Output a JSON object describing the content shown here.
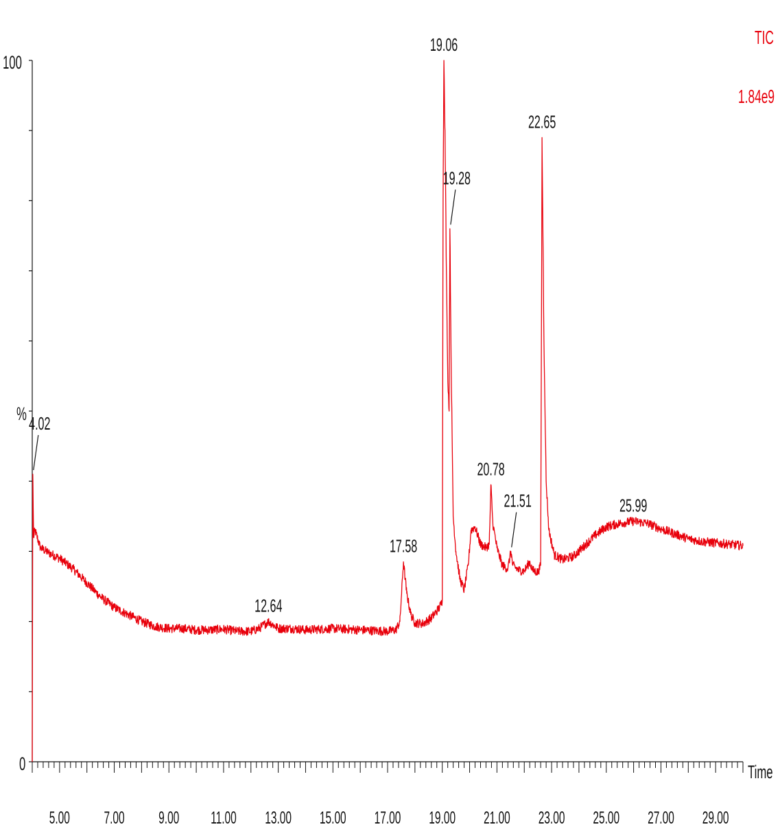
{
  "chart_data": {
    "type": "line",
    "trace_label": "TIC",
    "intensity_label": "1.84e9",
    "xlabel": "Time",
    "ylabel": "%",
    "xlim": [
      4.0,
      30.0
    ],
    "ylim": [
      0,
      100
    ],
    "y_tick_labels": {
      "top": "100",
      "bottom": "0"
    },
    "x_tick_values": [
      5,
      7,
      9,
      11,
      13,
      15,
      17,
      19,
      21,
      23,
      25,
      27,
      29
    ],
    "x_tick_labels": [
      "5.00",
      "7.00",
      "9.00",
      "11.00",
      "13.00",
      "15.00",
      "17.00",
      "19.00",
      "21.00",
      "23.00",
      "25.00",
      "27.00",
      "29.00"
    ],
    "series": [
      {
        "color": "#e8000b",
        "points": [
          [
            4.0,
            0
          ],
          [
            4.02,
            41
          ],
          [
            4.05,
            32
          ],
          [
            4.1,
            33
          ],
          [
            4.3,
            30.5
          ],
          [
            4.6,
            29.8
          ],
          [
            5.0,
            29
          ],
          [
            5.5,
            27.5
          ],
          [
            6.0,
            25.5
          ],
          [
            6.5,
            23.5
          ],
          [
            7.0,
            22
          ],
          [
            7.5,
            21
          ],
          [
            8.0,
            20
          ],
          [
            8.5,
            19.3
          ],
          [
            9.0,
            19
          ],
          [
            9.5,
            19
          ],
          [
            10.0,
            18.8
          ],
          [
            10.5,
            18.8
          ],
          [
            11.0,
            18.9
          ],
          [
            11.5,
            18.6
          ],
          [
            12.0,
            18.6
          ],
          [
            12.3,
            19
          ],
          [
            12.64,
            20
          ],
          [
            13.0,
            19
          ],
          [
            13.5,
            19
          ],
          [
            14.0,
            18.8
          ],
          [
            14.5,
            18.9
          ],
          [
            15.0,
            19
          ],
          [
            15.5,
            18.9
          ],
          [
            16.0,
            18.8
          ],
          [
            16.5,
            18.7
          ],
          [
            17.0,
            18.6
          ],
          [
            17.3,
            18.8
          ],
          [
            17.45,
            20
          ],
          [
            17.58,
            28.5
          ],
          [
            17.7,
            24
          ],
          [
            17.85,
            21
          ],
          [
            18.0,
            19.8
          ],
          [
            18.3,
            19.7
          ],
          [
            18.6,
            20.5
          ],
          [
            18.9,
            22
          ],
          [
            19.0,
            23
          ],
          [
            19.03,
            80
          ],
          [
            19.06,
            100
          ],
          [
            19.1,
            90
          ],
          [
            19.15,
            70
          ],
          [
            19.2,
            55
          ],
          [
            19.25,
            50
          ],
          [
            19.28,
            76
          ],
          [
            19.33,
            55
          ],
          [
            19.4,
            35
          ],
          [
            19.5,
            30
          ],
          [
            19.65,
            26
          ],
          [
            19.8,
            24.5
          ],
          [
            19.95,
            28
          ],
          [
            20.05,
            33
          ],
          [
            20.2,
            33.5
          ],
          [
            20.4,
            31
          ],
          [
            20.6,
            30.5
          ],
          [
            20.72,
            31
          ],
          [
            20.78,
            39.5
          ],
          [
            20.85,
            34
          ],
          [
            21.0,
            30.5
          ],
          [
            21.2,
            28
          ],
          [
            21.4,
            27.5
          ],
          [
            21.51,
            30
          ],
          [
            21.58,
            28
          ],
          [
            21.8,
            27.3
          ],
          [
            22.0,
            27.2
          ],
          [
            22.2,
            28.5
          ],
          [
            22.3,
            27.3
          ],
          [
            22.5,
            27
          ],
          [
            22.6,
            28
          ],
          [
            22.65,
            89
          ],
          [
            22.72,
            60
          ],
          [
            22.8,
            40
          ],
          [
            22.9,
            33
          ],
          [
            23.1,
            29.5
          ],
          [
            23.4,
            28.8
          ],
          [
            23.8,
            29.3
          ],
          [
            24.2,
            30.8
          ],
          [
            24.6,
            32.3
          ],
          [
            25.0,
            33.5
          ],
          [
            25.5,
            34
          ],
          [
            25.99,
            34.3
          ],
          [
            26.5,
            34
          ],
          [
            27.0,
            33.2
          ],
          [
            27.5,
            32.5
          ],
          [
            28.0,
            31.8
          ],
          [
            28.5,
            31.4
          ],
          [
            29.0,
            31.2
          ],
          [
            29.5,
            31
          ],
          [
            30.0,
            30.8
          ]
        ]
      }
    ],
    "peak_labels": [
      {
        "x": 4.02,
        "text": "4.02",
        "leader": true
      },
      {
        "x": 12.64,
        "text": "12.64",
        "leader": false
      },
      {
        "x": 17.58,
        "text": "17.58",
        "leader": false
      },
      {
        "x": 19.06,
        "text": "19.06",
        "leader": false
      },
      {
        "x": 19.28,
        "text": "19.28",
        "leader": true
      },
      {
        "x": 20.78,
        "text": "20.78",
        "leader": false
      },
      {
        "x": 21.51,
        "text": "21.51",
        "leader": true
      },
      {
        "x": 22.65,
        "text": "22.65",
        "leader": false
      },
      {
        "x": 25.99,
        "text": "25.99",
        "leader": false
      }
    ],
    "grid": false,
    "legend": "none"
  }
}
